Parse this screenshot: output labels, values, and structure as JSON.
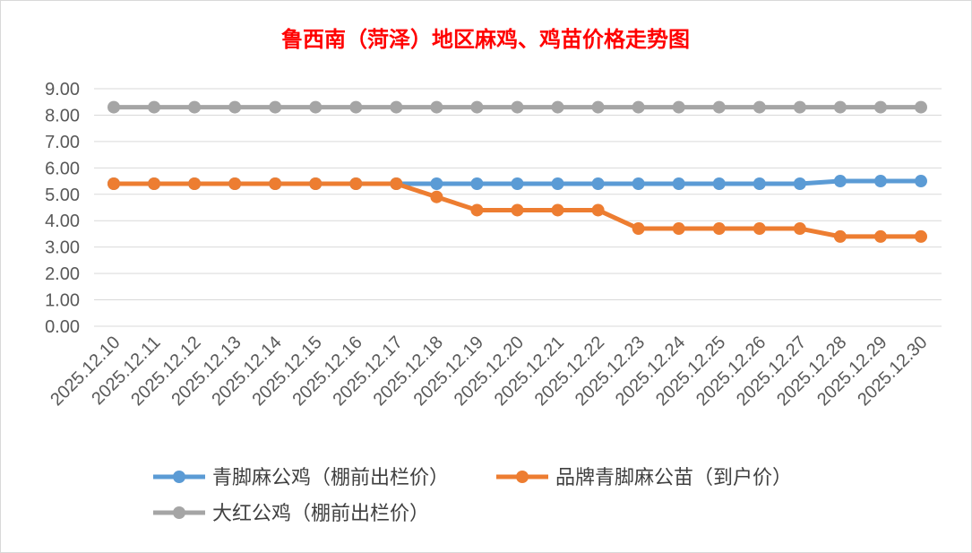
{
  "chart_data": {
    "type": "line",
    "title": "鲁西南（菏泽）地区麻鸡、鸡苗价格走势图",
    "categories": [
      "2025.12.10",
      "2025.12.11",
      "2025.12.12",
      "2025.12.13",
      "2025.12.14",
      "2025.12.15",
      "2025.12.16",
      "2025.12.17",
      "2025.12.18",
      "2025.12.19",
      "2025.12.20",
      "2025.12.21",
      "2025.12.22",
      "2025.12.23",
      "2025.12.24",
      "2025.12.25",
      "2025.12.26",
      "2025.12.27",
      "2025.12.28",
      "2025.12.29",
      "2025.12.30"
    ],
    "yticks": [
      "0.00",
      "1.00",
      "2.00",
      "3.00",
      "4.00",
      "5.00",
      "6.00",
      "7.00",
      "8.00",
      "9.00"
    ],
    "ylim": [
      0,
      9
    ],
    "grid": true,
    "legend_position": "bottom",
    "series": [
      {
        "name": "青脚麻公鸡（棚前出栏价）",
        "color": "#5b9bd5",
        "values": [
          5.4,
          5.4,
          5.4,
          5.4,
          5.4,
          5.4,
          5.4,
          5.4,
          5.4,
          5.4,
          5.4,
          5.4,
          5.4,
          5.4,
          5.4,
          5.4,
          5.4,
          5.4,
          5.5,
          5.5,
          5.5
        ]
      },
      {
        "name": "品牌青脚麻公苗（到户价）",
        "color": "#ed7d31",
        "values": [
          5.4,
          5.4,
          5.4,
          5.4,
          5.4,
          5.4,
          5.4,
          5.4,
          4.9,
          4.4,
          4.4,
          4.4,
          4.4,
          3.7,
          3.7,
          3.7,
          3.7,
          3.7,
          3.4,
          3.4,
          3.4
        ]
      },
      {
        "name": "大红公鸡（棚前出栏价）",
        "color": "#a5a5a5",
        "values": [
          8.3,
          8.3,
          8.3,
          8.3,
          8.3,
          8.3,
          8.3,
          8.3,
          8.3,
          8.3,
          8.3,
          8.3,
          8.3,
          8.3,
          8.3,
          8.3,
          8.3,
          8.3,
          8.3,
          8.3,
          8.3
        ]
      }
    ]
  }
}
